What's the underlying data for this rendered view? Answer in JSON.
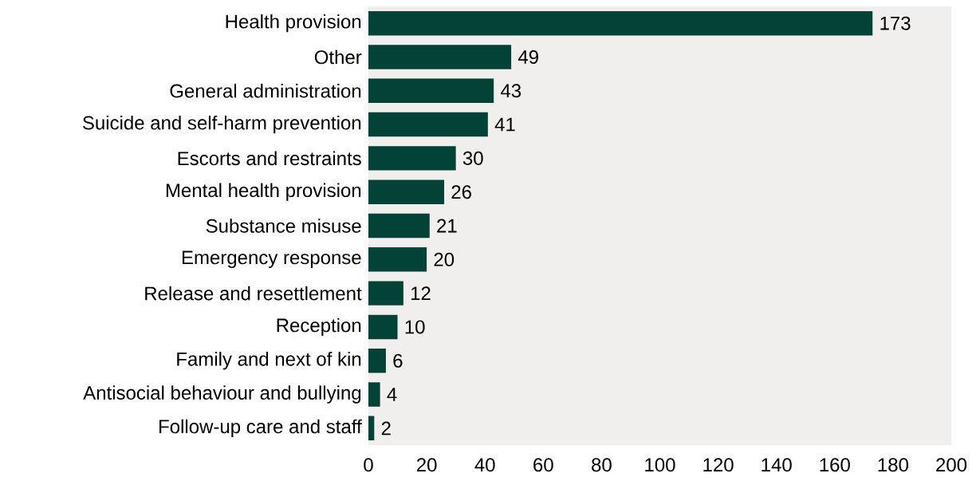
{
  "chart_data": {
    "type": "bar",
    "orientation": "horizontal",
    "categories": [
      "Health provision",
      "Other",
      "General administration",
      "Suicide and self-harm prevention",
      "Escorts and restraints",
      "Mental health provision",
      "Substance misuse",
      "Emergency response",
      "Release and resettlement",
      "Reception",
      "Family and next of kin",
      "Antisocial behaviour and bullying",
      "Follow-up care and staff"
    ],
    "values": [
      173,
      49,
      43,
      41,
      30,
      26,
      21,
      20,
      12,
      10,
      6,
      4,
      2
    ],
    "color": "#034236",
    "xlim": [
      0,
      200
    ],
    "xticks": [
      0,
      20,
      40,
      60,
      80,
      100,
      120,
      140,
      160,
      180,
      200
    ],
    "data_labels": true
  }
}
